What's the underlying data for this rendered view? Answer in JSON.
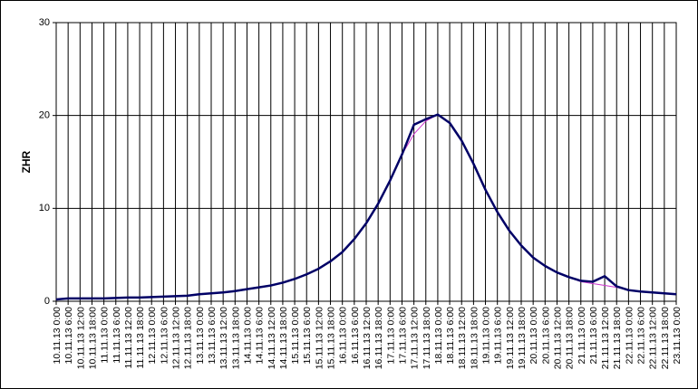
{
  "chart_data": {
    "type": "line",
    "y_label": "ZHR",
    "categories": [
      "10.11.13 0:00",
      "10.11.13 6:00",
      "10.11.13 12:00",
      "10.11.13 18:00",
      "11.11.13 0:00",
      "11.11.13 6:00",
      "11.11.13 12:00",
      "11.11.13 18:00",
      "12.11.13 0:00",
      "12.11.13 6:00",
      "12.11.13 12:00",
      "12.11.13 18:00",
      "13.11.13 0:00",
      "13.11.13 6:00",
      "13.11.13 12:00",
      "13.11.13 18:00",
      "14.11.13 0:00",
      "14.11.13 6:00",
      "14.11.13 12:00",
      "14.11.13 18:00",
      "15.11.13 0:00",
      "15.11.13 6:00",
      "15.11.13 12:00",
      "15.11.13 18:00",
      "16.11.13 0:00",
      "16.11.13 6:00",
      "16.11.13 12:00",
      "16.11.13 18:00",
      "17.11.13 0:00",
      "17.11.13 6:00",
      "17.11.13 12:00",
      "17.11.13 18:00",
      "18.11.13 0:00",
      "18.11.13 6:00",
      "18.11.13 12:00",
      "18.11.13 18:00",
      "19.11.13 0:00",
      "19.11.13 6:00",
      "19.11.13 12:00",
      "19.11.13 18:00",
      "20.11.13 0:00",
      "20.11.13 6:00",
      "20.11.13 12:00",
      "20.11.13 18:00",
      "21.11.13 0:00",
      "21.11.13 6:00",
      "21.11.13 12:00",
      "21.11.13 18:00",
      "22.11.13 0:00",
      "22.11.13 6:00",
      "22.11.13 12:00",
      "22.11.13 18:00",
      "23.11.13 0:00"
    ],
    "series": [
      {
        "color": "#cc33cc",
        "width": 1,
        "values": [
          0.2,
          0.3,
          0.3,
          0.3,
          0.3,
          0.35,
          0.4,
          0.4,
          0.45,
          0.5,
          0.55,
          0.6,
          0.75,
          0.85,
          0.95,
          1.1,
          1.3,
          1.5,
          1.7,
          2.0,
          2.4,
          2.9,
          3.5,
          4.3,
          5.3,
          6.7,
          8.4,
          10.5,
          13.0,
          15.8,
          18.0,
          19.4,
          20.1,
          19.2,
          17.3,
          14.8,
          12.0,
          9.6,
          7.6,
          6.0,
          4.7,
          3.8,
          3.1,
          2.6,
          2.1,
          1.9,
          1.7,
          1.5,
          1.2,
          1.05,
          0.95,
          0.85,
          0.75
        ]
      },
      {
        "color": "#000066",
        "width": 2.5,
        "values": [
          0.2,
          0.3,
          0.3,
          0.3,
          0.3,
          0.35,
          0.4,
          0.4,
          0.45,
          0.5,
          0.55,
          0.6,
          0.75,
          0.85,
          0.95,
          1.1,
          1.3,
          1.5,
          1.7,
          2.0,
          2.4,
          2.9,
          3.5,
          4.3,
          5.3,
          6.7,
          8.4,
          10.5,
          13.0,
          15.8,
          19.0,
          19.6,
          20.1,
          19.2,
          17.3,
          14.8,
          12.0,
          9.6,
          7.6,
          6.0,
          4.7,
          3.8,
          3.1,
          2.6,
          2.2,
          2.1,
          2.7,
          1.6,
          1.2,
          1.05,
          0.95,
          0.85,
          0.75
        ]
      }
    ],
    "ylim": [
      0,
      30
    ],
    "yticks": [
      0,
      10,
      20,
      30
    ],
    "grid": true
  }
}
